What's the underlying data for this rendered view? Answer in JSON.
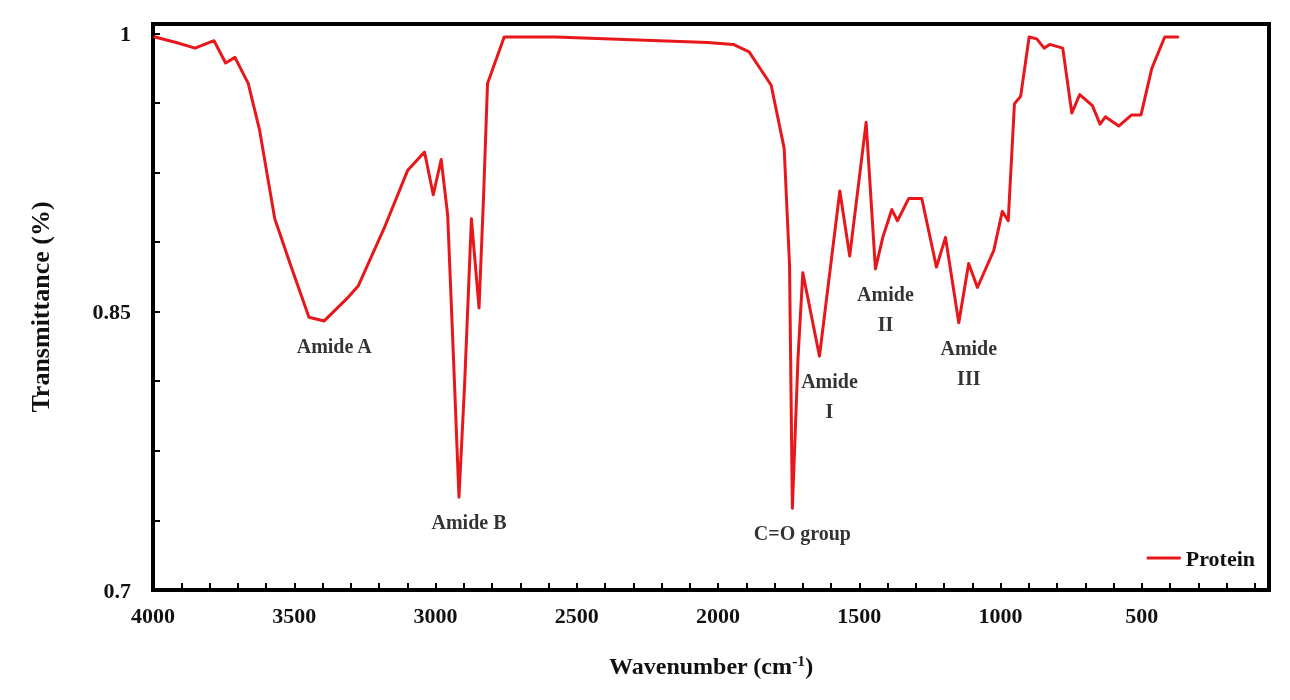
{
  "chart_data": {
    "type": "line",
    "xlabel": "Wavenumber (cm$^{-1}$)",
    "ylabel": "Transmittance (%)",
    "xlim": [
      4000,
      50
    ],
    "ylim": [
      0.7,
      1.005
    ],
    "xticks": [
      4000,
      {
        "value": 3900,
        "label": null
      },
      {
        "value": 3800,
        "label": null
      },
      {
        "value": 3700,
        "label": null
      },
      {
        "value": 3600,
        "label": null
      },
      3500,
      {
        "value": 3400,
        "label": null
      },
      {
        "value": 3300,
        "label": null
      },
      {
        "value": 3200,
        "label": null
      },
      {
        "value": 3100,
        "label": null
      },
      3000,
      {
        "value": 2900,
        "label": null
      },
      {
        "value": 2800,
        "label": null
      },
      {
        "value": 2700,
        "label": null
      },
      {
        "value": 2600,
        "label": null
      },
      2500,
      {
        "value": 2400,
        "label": null
      },
      {
        "value": 2300,
        "label": null
      },
      {
        "value": 2200,
        "label": null
      },
      {
        "value": 2100,
        "label": null
      },
      2000,
      {
        "value": 1900,
        "label": null
      },
      {
        "value": 1800,
        "label": null
      },
      {
        "value": 1700,
        "label": null
      },
      {
        "value": 1600,
        "label": null
      },
      1500,
      {
        "value": 1400,
        "label": null
      },
      {
        "value": 1300,
        "label": null
      },
      {
        "value": 1200,
        "label": null
      },
      {
        "value": 1100,
        "label": null
      },
      1000,
      {
        "value": 900,
        "label": null
      },
      {
        "value": 800,
        "label": null
      },
      {
        "value": 700,
        "label": null
      },
      {
        "value": 600,
        "label": null
      },
      500,
      {
        "value": 400,
        "label": null
      },
      {
        "value": 300,
        "label": null
      },
      {
        "value": 200,
        "label": null
      },
      {
        "value": 100,
        "label": null
      }
    ],
    "yticks": [
      0.7,
      {
        "value": 0.7375,
        "label": null
      },
      {
        "value": 0.775,
        "label": null
      },
      {
        "value": 0.8125,
        "label": null
      },
      0.85,
      {
        "value": 0.8875,
        "label": null
      },
      {
        "value": 0.925,
        "label": null
      },
      {
        "value": 0.9625,
        "label": null
      },
      1
    ],
    "grid": false,
    "legend": "bottom right",
    "marker": "none",
    "line_style": "solid",
    "series": [
      {
        "name": "Protein",
        "color": "#e8171b",
        "x": [
          3993,
          3918,
          3851,
          3784,
          3743,
          3710,
          3663,
          3623,
          3569,
          3515,
          3448,
          3394,
          3314,
          3273,
          3179,
          3099,
          3039,
          3008,
          2980,
          2957,
          2938,
          2917,
          2897,
          2873,
          2846,
          2830,
          2816,
          2757,
          2575,
          2037,
          1946,
          1890,
          1812,
          1766,
          1747,
          1737,
          1717,
          1700,
          1641,
          1569,
          1534,
          1476,
          1443,
          1417,
          1385,
          1365,
          1325,
          1279,
          1227,
          1195,
          1148,
          1113,
          1082,
          1024,
          994,
          973,
          951,
          929,
          899,
          872,
          846,
          826,
          780,
          748,
          720,
          675,
          648,
          629,
          582,
          536,
          503,
          465,
          419,
          373
        ],
        "values": [
          0.998,
          0.995,
          0.992,
          0.996,
          0.984,
          0.987,
          0.973,
          0.948,
          0.9,
          0.876,
          0.847,
          0.845,
          0.857,
          0.864,
          0.896,
          0.926,
          0.936,
          0.913,
          0.932,
          0.902,
          0.831,
          0.75,
          0.811,
          0.9,
          0.852,
          0.912,
          0.973,
          0.998,
          0.998,
          0.995,
          0.994,
          0.99,
          0.972,
          0.938,
          0.875,
          0.744,
          0.825,
          0.871,
          0.826,
          0.915,
          0.88,
          0.952,
          0.873,
          0.89,
          0.905,
          0.899,
          0.911,
          0.911,
          0.874,
          0.89,
          0.844,
          0.876,
          0.863,
          0.883,
          0.904,
          0.899,
          0.962,
          0.966,
          0.998,
          0.997,
          0.992,
          0.994,
          0.992,
          0.957,
          0.967,
          0.961,
          0.951,
          0.955,
          0.95,
          0.956,
          0.956,
          0.981,
          0.998,
          0.998
        ]
      }
    ],
    "annotations": [
      {
        "text": "Amide A",
        "x": 3394,
        "y": 0.845
      },
      {
        "text": "Amide B",
        "x": 2917,
        "y": 0.75
      },
      {
        "text": "C=O group",
        "x": 1737,
        "y": 0.744
      },
      {
        "text": "Amide\nI",
        "x": 1641,
        "y": 0.826
      },
      {
        "text": "Amide\nII",
        "x": 1443,
        "y": 0.873
      },
      {
        "text": "Amide\nIII",
        "x": 1148,
        "y": 0.844
      }
    ]
  }
}
